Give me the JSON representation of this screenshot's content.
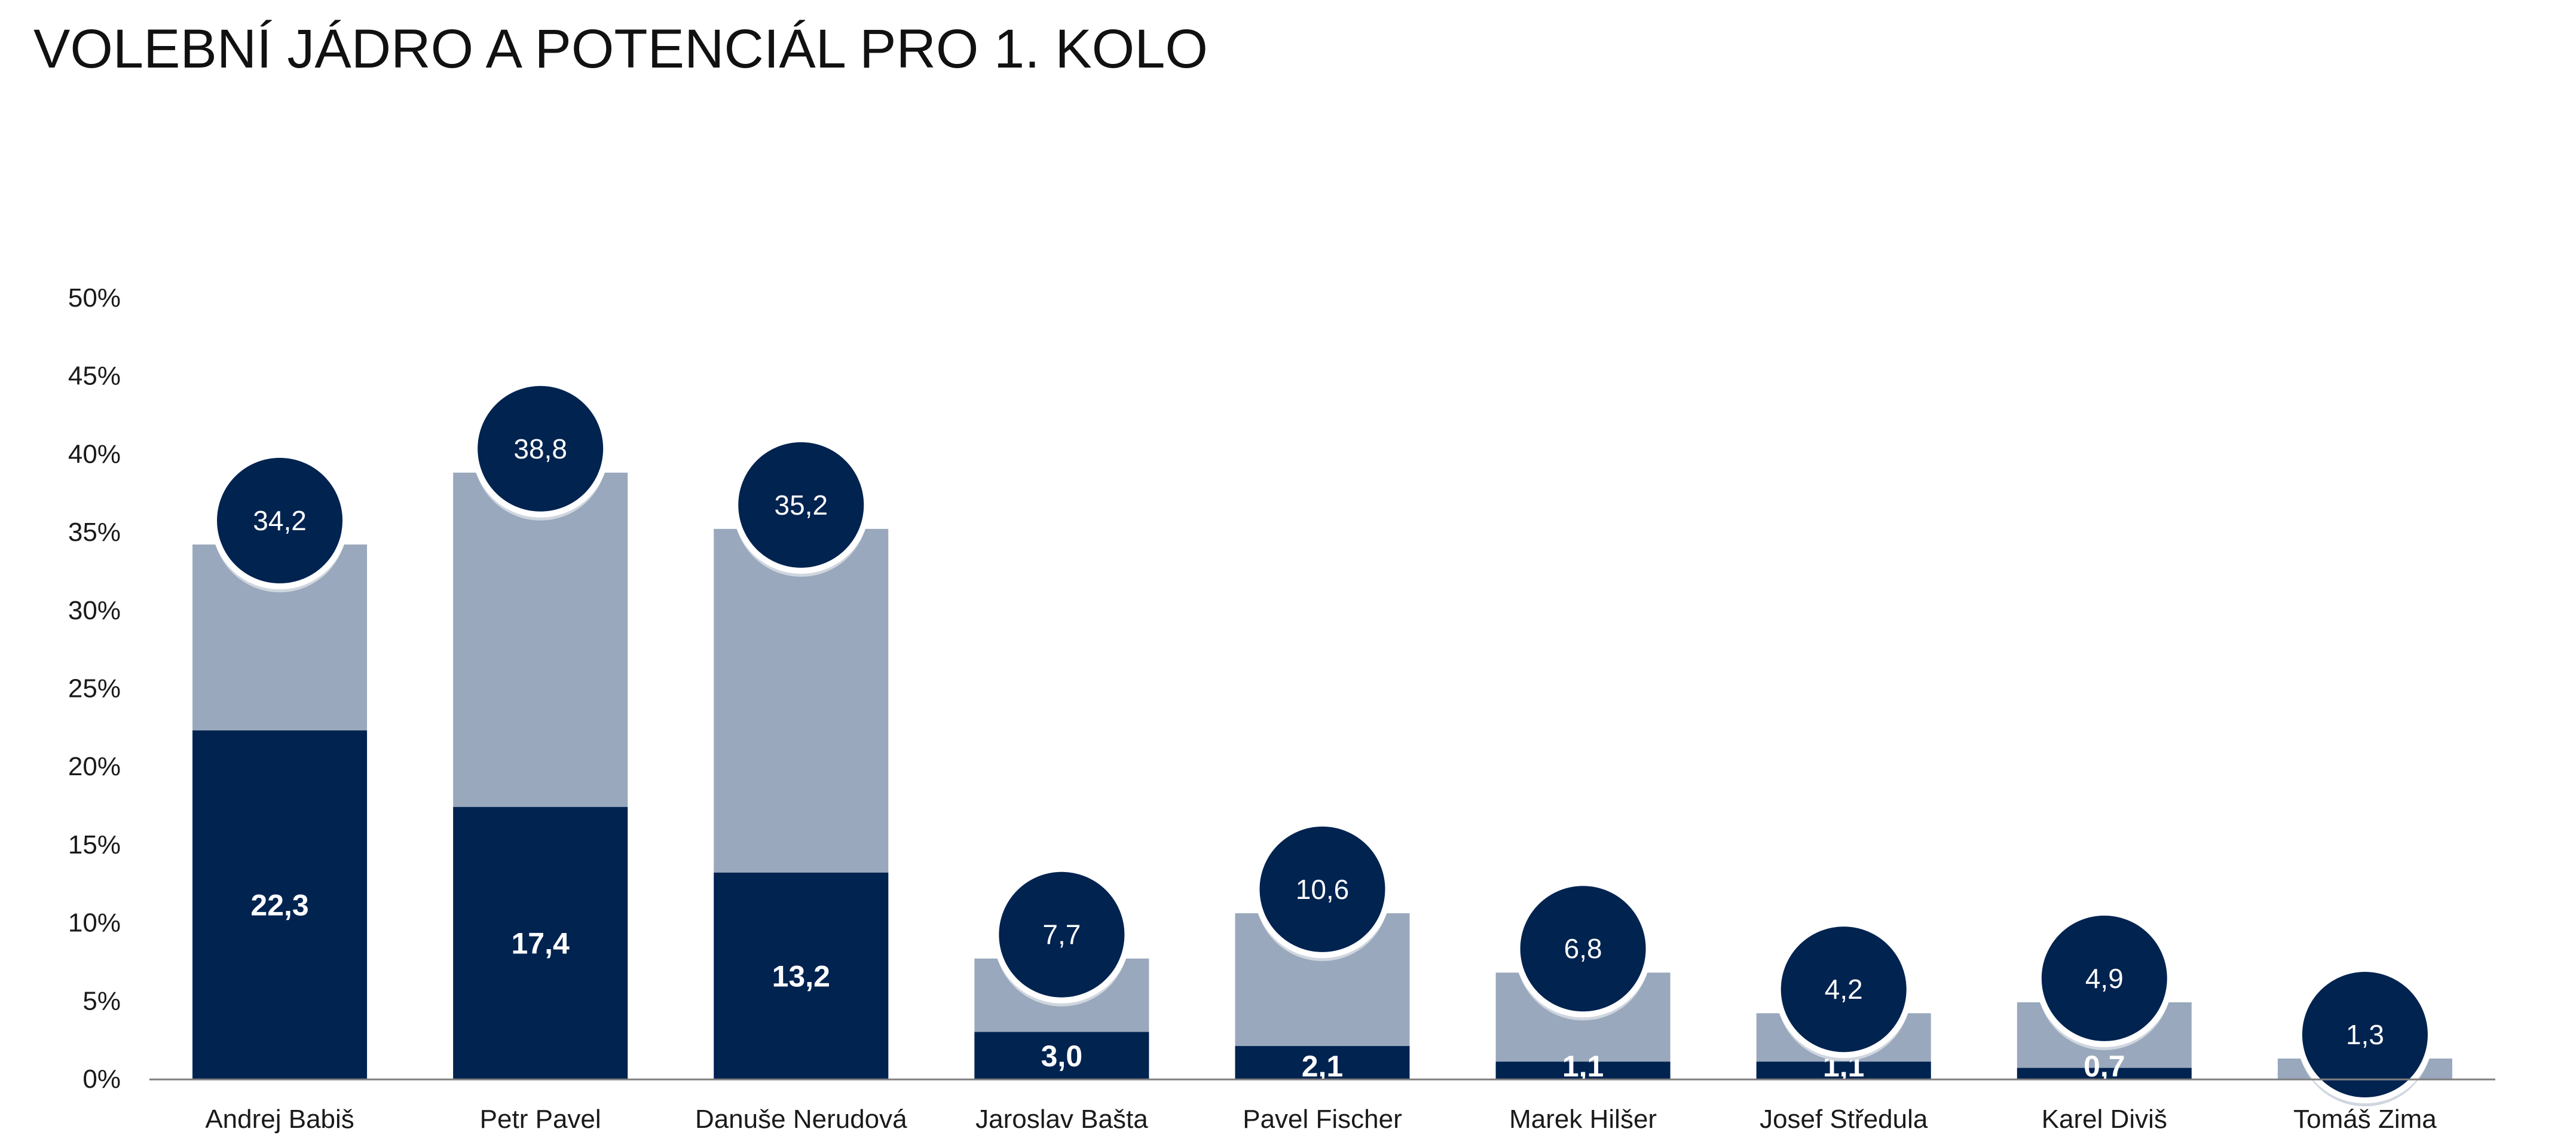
{
  "title": "VOLEBNÍ JÁDRO A POTENCIÁL PRO 1. KOLO",
  "colors": {
    "core": "#002350",
    "potential": "#99A8BC",
    "bubble": "#002350",
    "bubble_stroke": "#ffffff",
    "axis": "#808080"
  },
  "chart_data": {
    "type": "bar",
    "stacked": false,
    "ylim": [
      0,
      50
    ],
    "yticks": [
      0,
      5,
      10,
      15,
      20,
      25,
      30,
      35,
      40,
      45,
      50
    ],
    "ytick_labels": [
      "0%",
      "5%",
      "10%",
      "15%",
      "20%",
      "25%",
      "30%",
      "35%",
      "40%",
      "45%",
      "50%"
    ],
    "grid": false,
    "categories": [
      "Andrej Babiš",
      "Petr Pavel",
      "Danuše Nerudová",
      "Jaroslav Bašta",
      "Pavel Fischer",
      "Marek Hilšer",
      "Josef Středula",
      "Karel Diviš",
      "Tomáš Zima"
    ],
    "series": [
      {
        "values": [
          34.2,
          38.8,
          35.2,
          7.7,
          10.6,
          6.8,
          4.2,
          4.9,
          1.3
        ],
        "labels": [
          "34,2",
          "38,8",
          "35,2",
          "7,7",
          "10,6",
          "6,8",
          "4,2",
          "4,9",
          "1,3"
        ]
      },
      {
        "values": [
          22.3,
          17.4,
          13.2,
          3.0,
          2.1,
          1.1,
          1.1,
          0.7,
          0.0
        ],
        "labels": [
          "22,3",
          "17,4",
          "13,2",
          "3,0",
          "2,1",
          "1,1",
          "1,1",
          "0,7",
          ""
        ]
      }
    ]
  }
}
